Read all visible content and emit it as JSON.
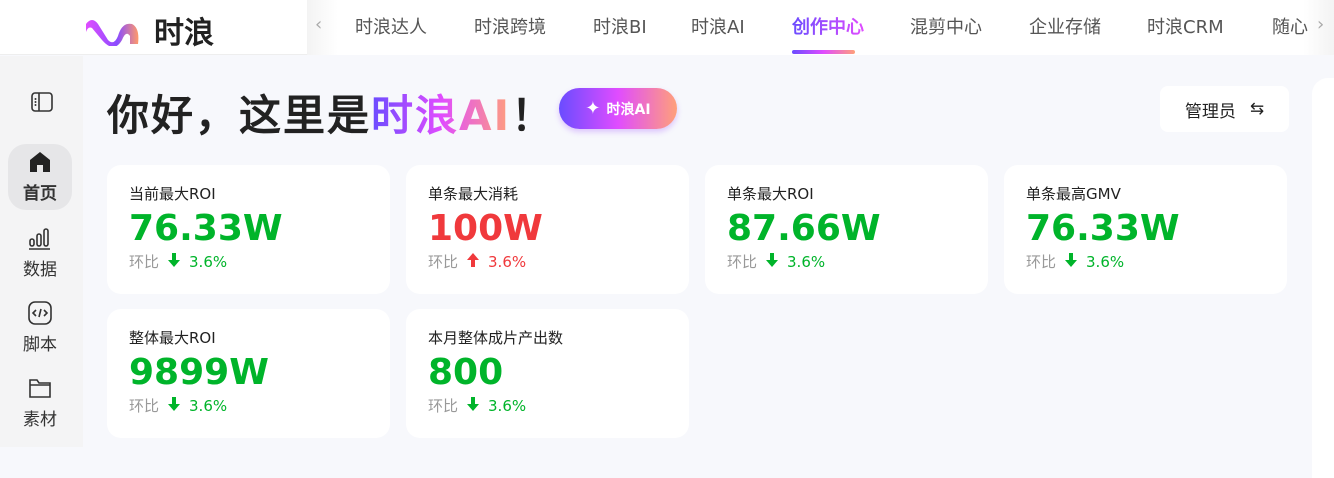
{
  "brand": {
    "name": "时浪"
  },
  "nav": {
    "items": [
      "时浪达人",
      "时浪跨境",
      "时浪BI",
      "时浪AI",
      "创作中心",
      "混剪中心",
      "企业存储",
      "时浪CRM",
      "随心"
    ],
    "active": "创作中心"
  },
  "sidebar": {
    "items": [
      {
        "label": "首页",
        "icon": "home-icon"
      },
      {
        "label": "数据",
        "icon": "bar-chart-icon"
      },
      {
        "label": "脚本",
        "icon": "code-icon"
      },
      {
        "label": "素材",
        "icon": "folder-icon"
      }
    ],
    "active": "首页"
  },
  "header": {
    "greeting": "你好，这里是",
    "brand": "时浪AI",
    "exclaim": "！",
    "ai_button": "时浪AI",
    "role": "管理员"
  },
  "colors": {
    "up": "#f0393c",
    "down": "#00b42a",
    "accent": "#7c4dff"
  },
  "cards": [
    {
      "label": "当前最大ROI",
      "value": "76.33W",
      "cmp_label": "环比",
      "trend": "down",
      "change": "3.6%"
    },
    {
      "label": "单条最大消耗",
      "value": "100W",
      "cmp_label": "环比",
      "trend": "up",
      "change": "3.6%"
    },
    {
      "label": "单条最大ROI",
      "value": "87.66W",
      "cmp_label": "环比",
      "trend": "down",
      "change": "3.6%"
    },
    {
      "label": "单条最高GMV",
      "value": "76.33W",
      "cmp_label": "环比",
      "trend": "down",
      "change": "3.6%"
    },
    {
      "label": "整体最大ROI",
      "value": "9899W",
      "cmp_label": "环比",
      "trend": "down",
      "change": "3.6%"
    },
    {
      "label": "本月整体成片产出数",
      "value": "800",
      "cmp_label": "环比",
      "trend": "down",
      "change": "3.6%"
    }
  ]
}
